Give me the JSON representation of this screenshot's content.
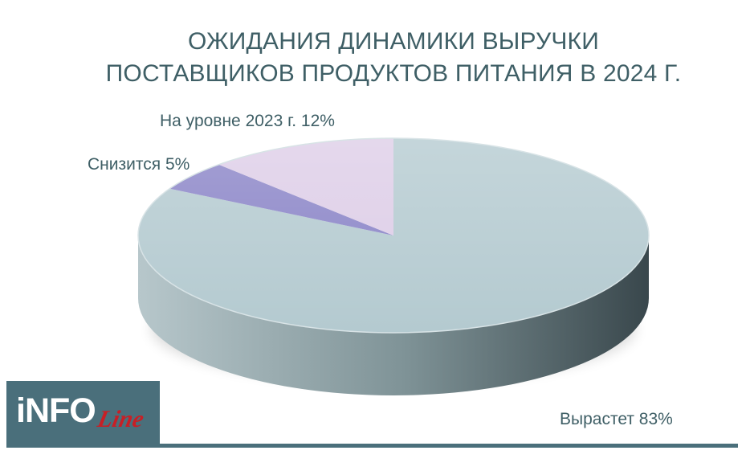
{
  "title": {
    "line1": "ОЖИДАНИЯ ДИНАМИКИ ВЫРУЧКИ",
    "line2": "ПОСТАВЩИКОВ ПРОДУКТОВ ПИТАНИЯ В 2024 Г."
  },
  "logo": {
    "main": "iNFO",
    "sub": "Line"
  },
  "colors": {
    "title": "#3f5f66",
    "growth": "#b4cad0",
    "growth_side_light": "#9aaeb3",
    "growth_side_dark": "#4a5a5f",
    "decline": "#8a84c7",
    "stable": "#ddcde7",
    "logo_bg": "#4a6f7b",
    "logo_red": "#c81f25"
  },
  "chart_data": {
    "type": "pie",
    "title": "ОЖИДАНИЯ ДИНАМИКИ ВЫРУЧКИ ПОСТАВЩИКОВ ПРОДУКТОВ ПИТАНИЯ В 2024 Г.",
    "slices": [
      {
        "label": "Вырастет 83%",
        "category": "Вырастет",
        "value": 83,
        "color": "#b4cad0"
      },
      {
        "label": "Снизится 5%",
        "category": "Снизится",
        "value": 5,
        "color": "#8a84c7"
      },
      {
        "label": "На уровне 2023 г. 12%",
        "category": "На уровне 2023 г.",
        "value": 12,
        "color": "#ddcde7"
      }
    ],
    "legend": "none",
    "style": "3d"
  }
}
